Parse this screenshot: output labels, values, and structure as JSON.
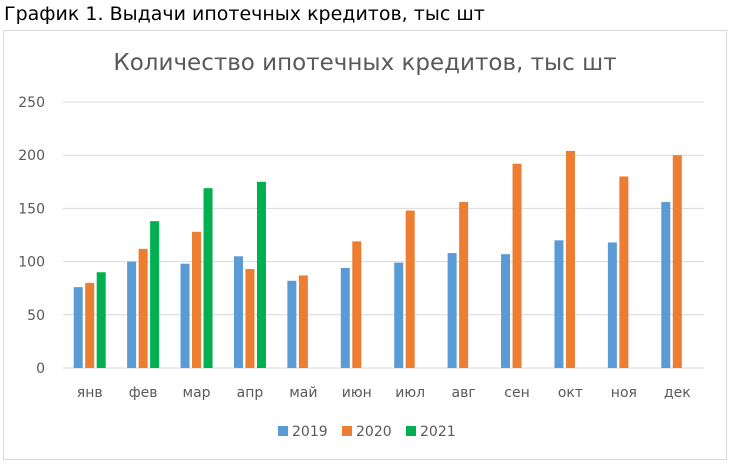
{
  "caption": "График 1. Выдачи ипотечных кредитов, тыс шт",
  "colors": {
    "2019": "#5b9bd5",
    "2020": "#ed7d31",
    "2021": "#00b050",
    "gridline": "#d9d9d9",
    "text": "#595959"
  },
  "chart_data": {
    "type": "bar",
    "title": "Количество ипотечных кредитов, тыс шт",
    "xlabel": "",
    "ylabel": "",
    "ylim": [
      0,
      250
    ],
    "yticks": [
      "0",
      "50",
      "100",
      "150",
      "200",
      "250"
    ],
    "grid": true,
    "legend_position": "bottom",
    "categories": [
      "янв",
      "фев",
      "мар",
      "апр",
      "май",
      "июн",
      "июл",
      "авг",
      "сен",
      "окт",
      "ноя",
      "дек"
    ],
    "series": [
      {
        "name": "2019",
        "values": [
          76,
          100,
          98,
          105,
          82,
          94,
          99,
          108,
          107,
          120,
          118,
          156
        ]
      },
      {
        "name": "2020",
        "values": [
          80,
          112,
          128,
          93,
          87,
          119,
          148,
          156,
          192,
          204,
          180,
          200
        ]
      },
      {
        "name": "2021",
        "values": [
          90,
          138,
          169,
          175,
          null,
          null,
          null,
          null,
          null,
          null,
          null,
          null
        ]
      }
    ]
  }
}
